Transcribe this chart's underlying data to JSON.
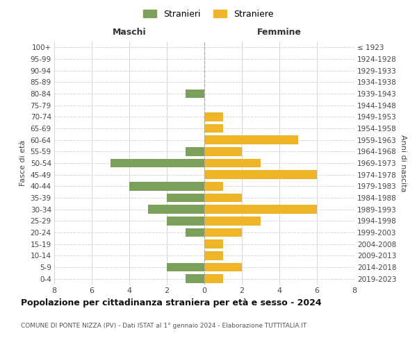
{
  "age_groups_bottom_to_top": [
    "0-4",
    "5-9",
    "10-14",
    "15-19",
    "20-24",
    "25-29",
    "30-34",
    "35-39",
    "40-44",
    "45-49",
    "50-54",
    "55-59",
    "60-64",
    "65-69",
    "70-74",
    "75-79",
    "80-84",
    "85-89",
    "90-94",
    "95-99",
    "100+"
  ],
  "birth_years_bottom_to_top": [
    "2019-2023",
    "2014-2018",
    "2009-2013",
    "2004-2008",
    "1999-2003",
    "1994-1998",
    "1989-1993",
    "1984-1988",
    "1979-1983",
    "1974-1978",
    "1969-1973",
    "1964-1968",
    "1959-1963",
    "1954-1958",
    "1949-1953",
    "1944-1948",
    "1939-1943",
    "1934-1938",
    "1929-1933",
    "1924-1928",
    "≤ 1923"
  ],
  "maschi_bottom_to_top": [
    1,
    2,
    0,
    0,
    1,
    2,
    3,
    2,
    4,
    0,
    5,
    1,
    0,
    0,
    0,
    0,
    1,
    0,
    0,
    0,
    0
  ],
  "femmine_bottom_to_top": [
    1,
    2,
    1,
    1,
    2,
    3,
    6,
    2,
    1,
    6,
    3,
    2,
    5,
    1,
    1,
    0,
    0,
    0,
    0,
    0,
    0
  ],
  "color_maschi": "#7ba05b",
  "color_femmine": "#f0b429",
  "title": "Popolazione per cittadinanza straniera per età e sesso - 2024",
  "subtitle": "COMUNE DI PONTE NIZZA (PV) - Dati ISTAT al 1° gennaio 2024 - Elaborazione TUTTITALIA.IT",
  "ylabel_left": "Fasce di età",
  "ylabel_right": "Anni di nascita",
  "xlabel_left": "Maschi",
  "xlabel_right": "Femmine",
  "legend_maschi": "Stranieri",
  "legend_femmine": "Straniere",
  "xlim": 8,
  "background_color": "#ffffff",
  "grid_color": "#d0d0d0"
}
